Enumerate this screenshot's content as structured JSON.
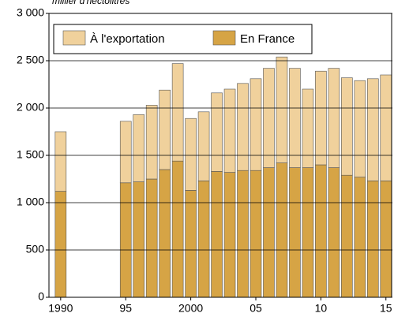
{
  "chart_data": {
    "type": "stacked_bar",
    "subtitle": "millier d'hectolitres",
    "x": [
      1990,
      1995,
      1996,
      1997,
      1998,
      1999,
      2000,
      2001,
      2002,
      2003,
      2004,
      2005,
      2006,
      2007,
      2008,
      2009,
      2010,
      2011,
      2012,
      2013,
      2014,
      2015
    ],
    "series": [
      {
        "name": "En France",
        "color": "#d6a445",
        "values": [
          1120,
          1210,
          1220,
          1250,
          1350,
          1440,
          1130,
          1230,
          1330,
          1320,
          1340,
          1340,
          1370,
          1420,
          1370,
          1370,
          1400,
          1370,
          1290,
          1270,
          1230,
          1230
        ]
      },
      {
        "name": "À l'exportation",
        "color": "#f0d19c",
        "values": [
          630,
          650,
          710,
          780,
          840,
          1030,
          760,
          730,
          830,
          880,
          920,
          970,
          1050,
          1120,
          1050,
          830,
          990,
          1050,
          1030,
          1020,
          1080,
          1120
        ]
      }
    ],
    "xlim": [
      1989.1,
      2015.5
    ],
    "xticks": [
      {
        "value": 1990,
        "label": "1990"
      },
      {
        "value": 1995,
        "label": "95"
      },
      2000,
      {
        "value": 2005,
        "label": "05"
      },
      {
        "value": 2010,
        "label": "10"
      },
      {
        "value": 2015,
        "label": "15"
      }
    ],
    "ylim": [
      0,
      3000
    ],
    "yticks": [
      0,
      500,
      {
        "value": 1000,
        "label": "1 000"
      },
      {
        "value": 1500,
        "label": "1 500"
      },
      {
        "value": 2000,
        "label": "2 000"
      },
      {
        "value": 2500,
        "label": "2 500"
      },
      {
        "value": 3000,
        "label": "3 000"
      }
    ],
    "grid": true,
    "legend": "top-left"
  }
}
